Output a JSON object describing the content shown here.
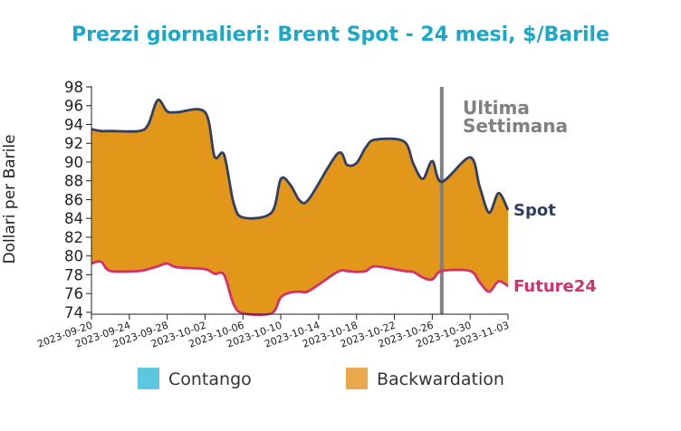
{
  "chart_data": {
    "type": "area",
    "title": "Prezzi giornalieri: Brent Spot - 24 mesi, $/Barile",
    "ylabel": "Dollari per Barile",
    "xlabel": "",
    "ylim": [
      73.8,
      98
    ],
    "yticks": [
      74,
      76,
      78,
      80,
      82,
      84,
      86,
      88,
      90,
      92,
      94,
      96,
      98
    ],
    "xlim": [
      "2023-09-20",
      "2023-11-03"
    ],
    "xticks": [
      "2023-09-20",
      "2023-09-24",
      "2023-09-28",
      "2023-10-02",
      "2023-10-06",
      "2023-10-10",
      "2023-10-14",
      "2023-10-18",
      "2023-10-22",
      "2023-10-26",
      "2023-10-30",
      "2023-11-03"
    ],
    "grid": false,
    "series": [
      {
        "name": "Spot",
        "color": "#2e3f63",
        "x": [
          "2023-09-20",
          "2023-09-21",
          "2023-09-22",
          "2023-09-25",
          "2023-09-26",
          "2023-09-27",
          "2023-09-28",
          "2023-09-29",
          "2023-10-02",
          "2023-10-03",
          "2023-10-04",
          "2023-10-05",
          "2023-10-06",
          "2023-10-09",
          "2023-10-10",
          "2023-10-11",
          "2023-10-12",
          "2023-10-13",
          "2023-10-16",
          "2023-10-17",
          "2023-10-18",
          "2023-10-19",
          "2023-10-20",
          "2023-10-23",
          "2023-10-24",
          "2023-10-25",
          "2023-10-26",
          "2023-10-27",
          "2023-10-30",
          "2023-10-31",
          "2023-11-01",
          "2023-11-02",
          "2023-11-03"
        ],
        "values": [
          93.5,
          93.3,
          93.3,
          93.3,
          94.0,
          96.6,
          95.4,
          95.3,
          95.3,
          90.6,
          90.8,
          85.7,
          84.1,
          84.6,
          88.2,
          87.6,
          85.9,
          86.1,
          90.9,
          89.7,
          89.9,
          91.6,
          92.4,
          92.2,
          89.8,
          88.2,
          90.1,
          87.9,
          90.5,
          87.4,
          84.6,
          86.7,
          84.9
        ]
      },
      {
        "name": "Future24",
        "color": "#d4306f",
        "x": [
          "2023-09-20",
          "2023-09-21",
          "2023-09-22",
          "2023-09-25",
          "2023-09-26",
          "2023-09-27",
          "2023-09-28",
          "2023-09-29",
          "2023-10-02",
          "2023-10-03",
          "2023-10-04",
          "2023-10-05",
          "2023-10-06",
          "2023-10-09",
          "2023-10-10",
          "2023-10-11",
          "2023-10-12",
          "2023-10-13",
          "2023-10-16",
          "2023-10-17",
          "2023-10-18",
          "2023-10-19",
          "2023-10-20",
          "2023-10-23",
          "2023-10-24",
          "2023-10-25",
          "2023-10-26",
          "2023-10-27",
          "2023-10-30",
          "2023-10-31",
          "2023-11-01",
          "2023-11-02",
          "2023-11-03"
        ],
        "values": [
          79.2,
          79.4,
          78.4,
          78.4,
          78.6,
          78.9,
          79.2,
          78.8,
          78.6,
          78.1,
          78.0,
          74.9,
          73.9,
          73.9,
          75.6,
          76.1,
          76.2,
          76.3,
          78.3,
          78.4,
          78.3,
          78.4,
          78.9,
          78.4,
          78.3,
          77.7,
          77.5,
          78.4,
          78.4,
          77.2,
          76.2,
          77.3,
          76.8
        ]
      }
    ],
    "fill_colors": {
      "contango": "#5bc8e0",
      "backwardation": "#e2961a"
    },
    "legend": {
      "position": "bottom",
      "entries": [
        {
          "label": "Contango",
          "color": "#5bc8e0"
        },
        {
          "label": "Backwardation",
          "color": "#eba94e"
        }
      ]
    },
    "annotations": {
      "vline_date": "2023-10-27",
      "vline_color": "#808080",
      "vline_text": [
        "Ultima",
        "Settimana"
      ],
      "title_color": "#1aa8c9"
    }
  }
}
